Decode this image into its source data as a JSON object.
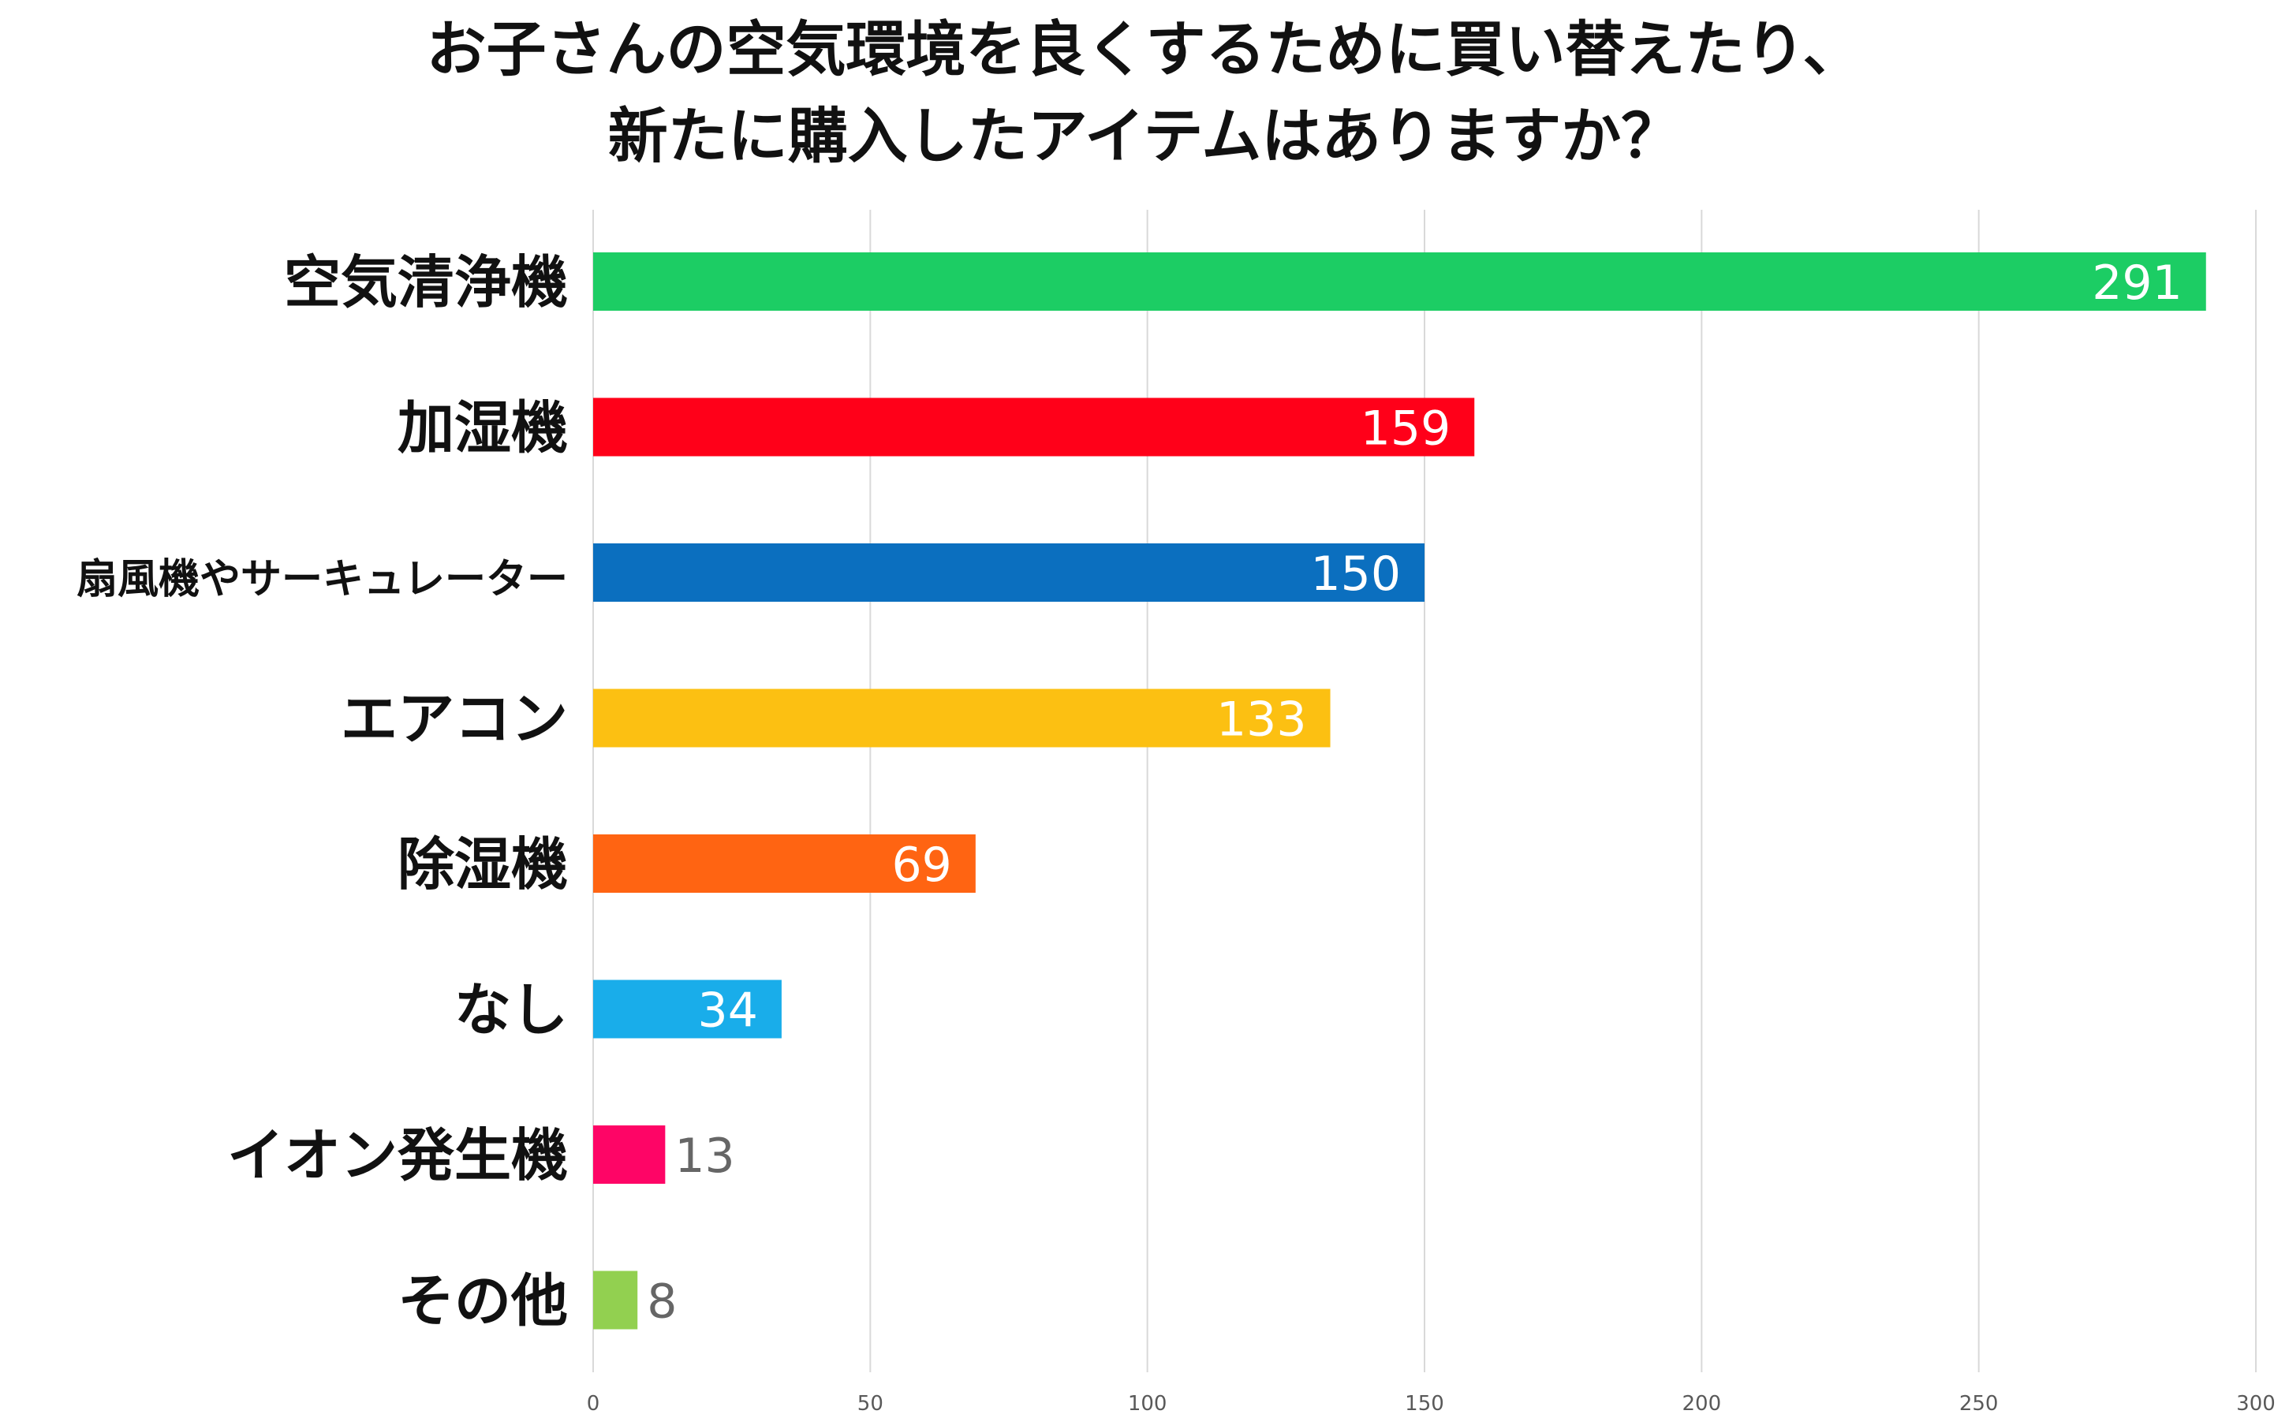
{
  "chart_data": {
    "type": "bar",
    "orientation": "horizontal",
    "title_lines": [
      "お子さんの空気環境を良くするために買い替えたり、",
      "新たに購入したアイテムはありますか？"
    ],
    "categories": [
      "空気清浄機",
      "加湿機",
      "扇風機やサーキュレーター",
      "エアコン",
      "除湿機",
      "なし",
      "イオン発生機",
      "その他"
    ],
    "values": [
      291,
      159,
      150,
      133,
      69,
      34,
      13,
      8
    ],
    "colors": [
      "#1ccd64",
      "#ff0019",
      "#0b6fbf",
      "#fcc012",
      "#ff6412",
      "#19adea",
      "#fe0566",
      "#92d050"
    ],
    "xlim": [
      0,
      300
    ],
    "xticks": [
      0,
      50,
      100,
      150,
      200,
      250,
      300
    ],
    "grid": true,
    "xlabel": "",
    "ylabel": ""
  }
}
